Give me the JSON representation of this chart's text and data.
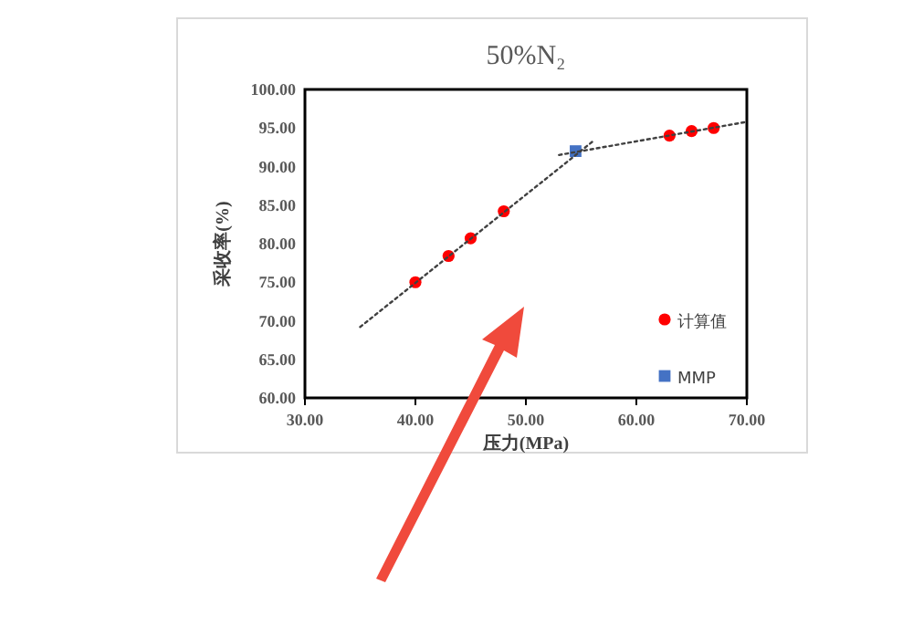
{
  "chart_data": {
    "type": "scatter",
    "title": "50%N₂",
    "xlabel": "压力(MPa)",
    "ylabel": "采收率(%)",
    "xlim": [
      30,
      70
    ],
    "ylim": [
      60,
      100
    ],
    "xticks": [
      {
        "value": 30,
        "label": "30.00"
      },
      {
        "value": 40,
        "label": "40.00"
      },
      {
        "value": 50,
        "label": "50.00"
      },
      {
        "value": 60,
        "label": "60.00"
      },
      {
        "value": 70,
        "label": "70.00"
      }
    ],
    "yticks": [
      {
        "value": 60,
        "label": "60.00"
      },
      {
        "value": 65,
        "label": "65.00"
      },
      {
        "value": 70,
        "label": "70.00"
      },
      {
        "value": 75,
        "label": "75.00"
      },
      {
        "value": 80,
        "label": "80.00"
      },
      {
        "value": 85,
        "label": "85.00"
      },
      {
        "value": 90,
        "label": "90.00"
      },
      {
        "value": 95,
        "label": "95.00"
      },
      {
        "value": 100,
        "label": "100.00"
      }
    ],
    "grid": false,
    "legend": "bottom right",
    "series": [
      {
        "name": "计算值",
        "marker": "circle",
        "color": "#ff0000",
        "x": [
          40,
          43,
          45,
          48,
          63,
          65,
          67
        ],
        "values": [
          75,
          78.4,
          80.7,
          84.2,
          94,
          94.6,
          95
        ]
      },
      {
        "name": "MMP",
        "type": "scatter",
        "marker": "square",
        "color": "#4472c4",
        "x": [
          54.5
        ],
        "values": [
          92
        ]
      },
      {
        "type": "line",
        "line_style": "dotted",
        "color": "#404040",
        "x": [
          35,
          56
        ],
        "values": [
          69.2,
          93.2
        ]
      },
      {
        "type": "line",
        "line_style": "dotted",
        "color": "#404040",
        "x": [
          53,
          70
        ],
        "values": [
          91.5,
          95.8
        ]
      }
    ]
  }
}
